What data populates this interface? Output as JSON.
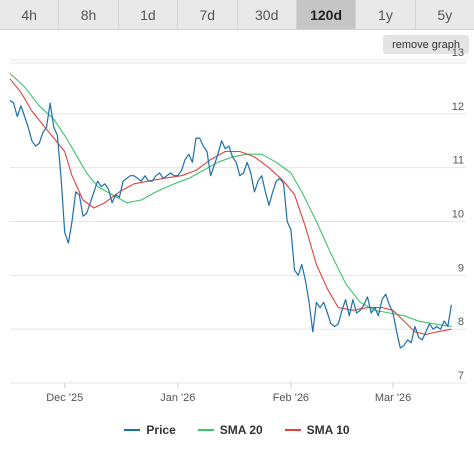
{
  "tabs": [
    {
      "label": "4h",
      "active": false
    },
    {
      "label": "8h",
      "active": false
    },
    {
      "label": "1d",
      "active": false
    },
    {
      "label": "7d",
      "active": false
    },
    {
      "label": "30d",
      "active": false
    },
    {
      "label": "120d",
      "active": true
    },
    {
      "label": "1y",
      "active": false
    },
    {
      "label": "5y",
      "active": false
    }
  ],
  "remove_graph_label": "remove graph",
  "legend": {
    "price": "Price",
    "sma20": "SMA 20",
    "sma10": "SMA 10"
  },
  "colors": {
    "price": "#1f6fa8",
    "sma20": "#3cc46a",
    "sma10": "#e0433c",
    "grid": "#e6e6e6",
    "axis_text": "#555555"
  },
  "chart_data": {
    "type": "line",
    "ylim": [
      7,
      13
    ],
    "yticks": [
      7,
      8,
      9,
      10,
      11,
      12,
      13
    ],
    "xlim": [
      "2025-11-16",
      "2026-03-21"
    ],
    "xticks": [
      {
        "date": "2025-12-01",
        "label": "Dec '25"
      },
      {
        "date": "2026-01-01",
        "label": "Jan '26"
      },
      {
        "date": "2026-02-01",
        "label": "Feb '26"
      },
      {
        "date": "2026-03-01",
        "label": "Mar '26"
      }
    ],
    "series": [
      {
        "name": "Price",
        "color": "#1f6fa8",
        "points": [
          [
            "2025-11-16",
            12.25
          ],
          [
            "2025-11-17",
            12.2
          ],
          [
            "2025-11-18",
            11.95
          ],
          [
            "2025-11-19",
            12.15
          ],
          [
            "2025-11-20",
            11.95
          ],
          [
            "2025-11-21",
            11.75
          ],
          [
            "2025-11-22",
            11.5
          ],
          [
            "2025-11-23",
            11.4
          ],
          [
            "2025-11-24",
            11.45
          ],
          [
            "2025-11-25",
            11.65
          ],
          [
            "2025-11-26",
            11.75
          ],
          [
            "2025-11-27",
            12.2
          ],
          [
            "2025-11-28",
            11.75
          ],
          [
            "2025-11-29",
            11.6
          ],
          [
            "2025-11-30",
            10.8
          ],
          [
            "2025-12-01",
            9.8
          ],
          [
            "2025-12-02",
            9.6
          ],
          [
            "2025-12-03",
            10.0
          ],
          [
            "2025-12-04",
            10.55
          ],
          [
            "2025-12-05",
            10.5
          ],
          [
            "2025-12-06",
            10.1
          ],
          [
            "2025-12-07",
            10.15
          ],
          [
            "2025-12-08",
            10.35
          ],
          [
            "2025-12-09",
            10.55
          ],
          [
            "2025-12-10",
            10.75
          ],
          [
            "2025-12-11",
            10.65
          ],
          [
            "2025-12-12",
            10.7
          ],
          [
            "2025-12-13",
            10.6
          ],
          [
            "2025-12-14",
            10.35
          ],
          [
            "2025-12-15",
            10.5
          ],
          [
            "2025-12-16",
            10.45
          ],
          [
            "2025-12-17",
            10.75
          ],
          [
            "2025-12-18",
            10.8
          ],
          [
            "2025-12-19",
            10.85
          ],
          [
            "2025-12-20",
            10.85
          ],
          [
            "2025-12-21",
            10.8
          ],
          [
            "2025-12-22",
            10.75
          ],
          [
            "2025-12-23",
            10.85
          ],
          [
            "2025-12-24",
            10.75
          ],
          [
            "2025-12-25",
            10.75
          ],
          [
            "2025-12-26",
            10.85
          ],
          [
            "2025-12-27",
            10.9
          ],
          [
            "2025-12-28",
            10.8
          ],
          [
            "2025-12-29",
            10.85
          ],
          [
            "2025-12-30",
            10.9
          ],
          [
            "2025-12-31",
            10.85
          ],
          [
            "2026-01-01",
            10.85
          ],
          [
            "2026-01-02",
            10.95
          ],
          [
            "2026-01-03",
            11.15
          ],
          [
            "2026-01-04",
            11.25
          ],
          [
            "2026-01-05",
            11.1
          ],
          [
            "2026-01-06",
            11.55
          ],
          [
            "2026-01-07",
            11.55
          ],
          [
            "2026-01-08",
            11.4
          ],
          [
            "2026-01-09",
            11.3
          ],
          [
            "2026-01-10",
            10.85
          ],
          [
            "2026-01-11",
            11.05
          ],
          [
            "2026-01-12",
            11.25
          ],
          [
            "2026-01-13",
            11.5
          ],
          [
            "2026-01-14",
            11.35
          ],
          [
            "2026-01-15",
            11.4
          ],
          [
            "2026-01-16",
            11.2
          ],
          [
            "2026-01-17",
            11.1
          ],
          [
            "2026-01-18",
            10.85
          ],
          [
            "2026-01-19",
            10.9
          ],
          [
            "2026-01-20",
            11.1
          ],
          [
            "2026-01-21",
            10.9
          ],
          [
            "2026-01-22",
            10.55
          ],
          [
            "2026-01-23",
            10.75
          ],
          [
            "2026-01-24",
            10.85
          ],
          [
            "2026-01-25",
            10.55
          ],
          [
            "2026-01-26",
            10.3
          ],
          [
            "2026-01-27",
            10.55
          ],
          [
            "2026-01-28",
            10.75
          ],
          [
            "2026-01-29",
            10.8
          ],
          [
            "2026-01-30",
            10.7
          ],
          [
            "2026-01-31",
            10.0
          ],
          [
            "2026-02-01",
            9.85
          ],
          [
            "2026-02-02",
            9.1
          ],
          [
            "2026-02-03",
            9.0
          ],
          [
            "2026-02-04",
            9.2
          ],
          [
            "2026-02-05",
            8.9
          ],
          [
            "2026-02-06",
            8.5
          ],
          [
            "2026-02-07",
            7.95
          ],
          [
            "2026-02-08",
            8.5
          ],
          [
            "2026-02-09",
            8.4
          ],
          [
            "2026-02-10",
            8.5
          ],
          [
            "2026-02-11",
            8.3
          ],
          [
            "2026-02-12",
            8.1
          ],
          [
            "2026-02-13",
            8.05
          ],
          [
            "2026-02-14",
            8.1
          ],
          [
            "2026-02-15",
            8.35
          ],
          [
            "2026-02-16",
            8.55
          ],
          [
            "2026-02-17",
            8.25
          ],
          [
            "2026-02-18",
            8.55
          ],
          [
            "2026-02-19",
            8.3
          ],
          [
            "2026-02-20",
            8.35
          ],
          [
            "2026-02-21",
            8.45
          ],
          [
            "2026-02-22",
            8.6
          ],
          [
            "2026-02-23",
            8.3
          ],
          [
            "2026-02-24",
            8.4
          ],
          [
            "2026-02-25",
            8.25
          ],
          [
            "2026-02-26",
            8.55
          ],
          [
            "2026-02-27",
            8.65
          ],
          [
            "2026-02-28",
            8.45
          ],
          [
            "2026-03-01",
            8.3
          ],
          [
            "2026-03-02",
            7.95
          ],
          [
            "2026-03-03",
            7.65
          ],
          [
            "2026-03-04",
            7.7
          ],
          [
            "2026-03-05",
            7.8
          ],
          [
            "2026-03-06",
            7.75
          ],
          [
            "2026-03-07",
            8.05
          ],
          [
            "2026-03-08",
            7.85
          ],
          [
            "2026-03-09",
            7.8
          ],
          [
            "2026-03-10",
            7.95
          ],
          [
            "2026-03-11",
            8.1
          ],
          [
            "2026-03-12",
            8.0
          ],
          [
            "2026-03-13",
            8.05
          ],
          [
            "2026-03-14",
            8.0
          ],
          [
            "2026-03-15",
            8.15
          ],
          [
            "2026-03-16",
            8.05
          ],
          [
            "2026-03-17",
            8.45
          ]
        ]
      },
      {
        "name": "SMA 20",
        "color": "#3cc46a",
        "points": [
          [
            "2025-11-16",
            12.75
          ],
          [
            "2025-11-20",
            12.5
          ],
          [
            "2025-11-24",
            12.15
          ],
          [
            "2025-11-28",
            11.9
          ],
          [
            "2025-12-01",
            11.6
          ],
          [
            "2025-12-04",
            11.25
          ],
          [
            "2025-12-07",
            10.9
          ],
          [
            "2025-12-10",
            10.65
          ],
          [
            "2025-12-14",
            10.5
          ],
          [
            "2025-12-18",
            10.35
          ],
          [
            "2025-12-22",
            10.4
          ],
          [
            "2025-12-26",
            10.55
          ],
          [
            "2025-12-31",
            10.7
          ],
          [
            "2026-01-04",
            10.8
          ],
          [
            "2026-01-08",
            10.95
          ],
          [
            "2026-01-12",
            11.1
          ],
          [
            "2026-01-16",
            11.2
          ],
          [
            "2026-01-20",
            11.25
          ],
          [
            "2026-01-24",
            11.25
          ],
          [
            "2026-01-28",
            11.1
          ],
          [
            "2026-02-01",
            10.9
          ],
          [
            "2026-02-04",
            10.55
          ],
          [
            "2026-02-08",
            10.0
          ],
          [
            "2026-02-12",
            9.4
          ],
          [
            "2026-02-16",
            8.85
          ],
          [
            "2026-02-20",
            8.5
          ],
          [
            "2026-02-24",
            8.35
          ],
          [
            "2026-02-28",
            8.3
          ],
          [
            "2026-03-04",
            8.25
          ],
          [
            "2026-03-08",
            8.15
          ],
          [
            "2026-03-12",
            8.1
          ],
          [
            "2026-03-17",
            8.05
          ]
        ]
      },
      {
        "name": "SMA 10",
        "color": "#e0433c",
        "points": [
          [
            "2025-11-16",
            12.65
          ],
          [
            "2025-11-19",
            12.4
          ],
          [
            "2025-11-22",
            12.05
          ],
          [
            "2025-11-25",
            11.8
          ],
          [
            "2025-11-28",
            11.55
          ],
          [
            "2025-12-01",
            11.3
          ],
          [
            "2025-12-03",
            10.85
          ],
          [
            "2025-12-06",
            10.4
          ],
          [
            "2025-12-09",
            10.25
          ],
          [
            "2025-12-12",
            10.35
          ],
          [
            "2025-12-16",
            10.55
          ],
          [
            "2025-12-20",
            10.7
          ],
          [
            "2025-12-24",
            10.75
          ],
          [
            "2025-12-28",
            10.8
          ],
          [
            "2026-01-02",
            10.85
          ],
          [
            "2026-01-06",
            10.95
          ],
          [
            "2026-01-10",
            11.15
          ],
          [
            "2026-01-14",
            11.3
          ],
          [
            "2026-01-18",
            11.3
          ],
          [
            "2026-01-22",
            11.2
          ],
          [
            "2026-01-26",
            11.0
          ],
          [
            "2026-01-30",
            10.75
          ],
          [
            "2026-02-02",
            10.5
          ],
          [
            "2026-02-05",
            9.9
          ],
          [
            "2026-02-08",
            9.2
          ],
          [
            "2026-02-11",
            8.75
          ],
          [
            "2026-02-14",
            8.4
          ],
          [
            "2026-02-18",
            8.35
          ],
          [
            "2026-02-22",
            8.4
          ],
          [
            "2026-02-26",
            8.4
          ],
          [
            "2026-03-01",
            8.35
          ],
          [
            "2026-03-04",
            8.15
          ],
          [
            "2026-03-07",
            7.95
          ],
          [
            "2026-03-10",
            7.9
          ],
          [
            "2026-03-13",
            7.95
          ],
          [
            "2026-03-17",
            8.0
          ]
        ]
      }
    ]
  }
}
